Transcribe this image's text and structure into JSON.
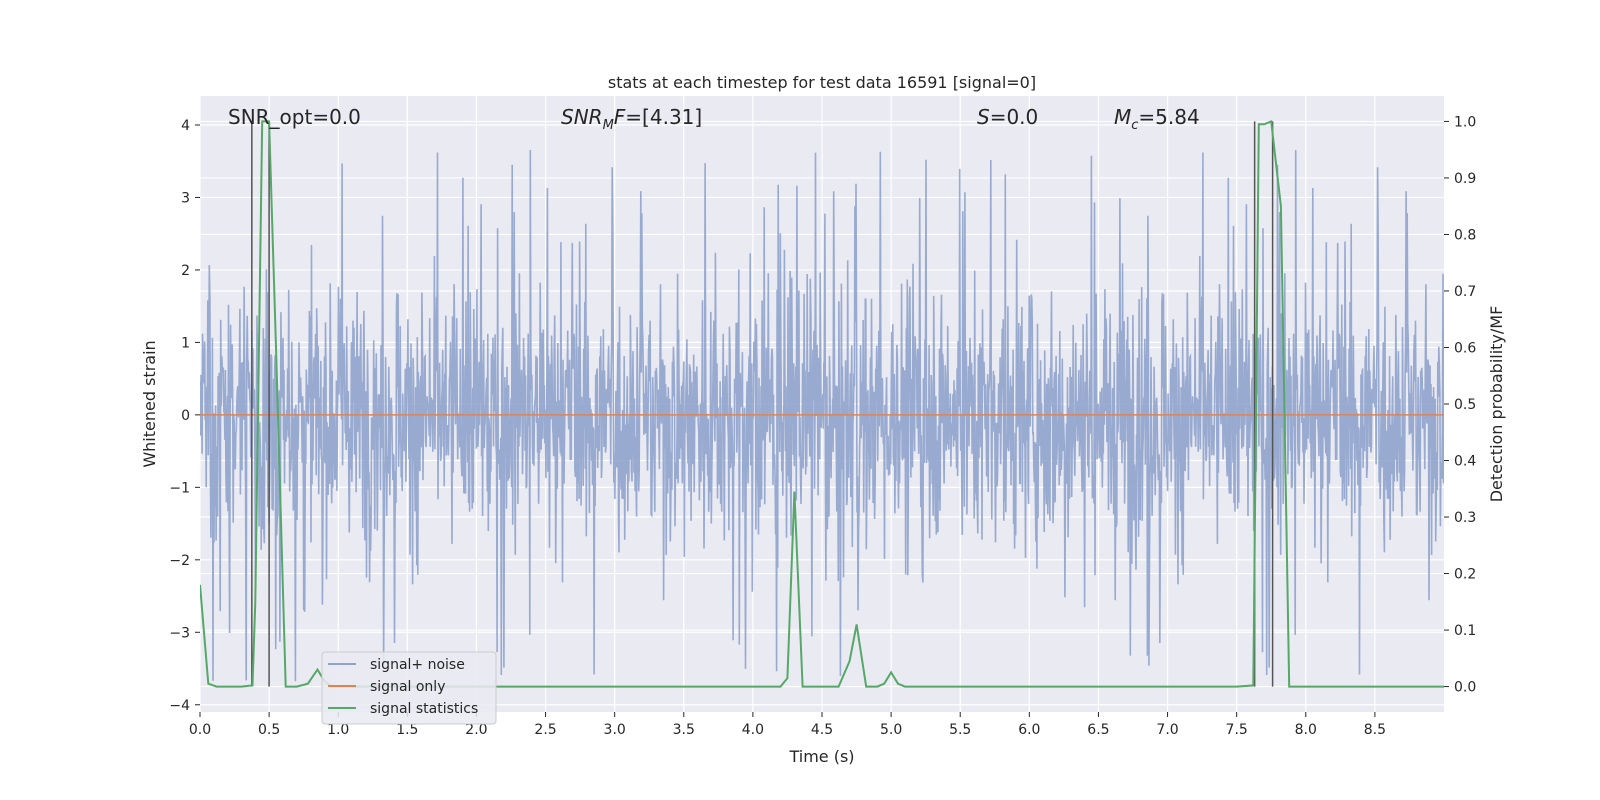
{
  "chart_data": {
    "type": "line",
    "title": "stats at each timestep for test data 16591 [signal=0]",
    "xlabel": "Time (s)",
    "ylabel": "Whitened strain",
    "y2label": "Detection probability/MF",
    "xlim": [
      0.0,
      9.0
    ],
    "ylim": [
      -4.1,
      4.4
    ],
    "y2lim": [
      -0.045,
      1.045
    ],
    "xticks": [
      "0.0",
      "0.5",
      "1.0",
      "1.5",
      "2.0",
      "2.5",
      "3.0",
      "3.5",
      "4.0",
      "4.5",
      "5.0",
      "5.5",
      "6.0",
      "6.5",
      "7.0",
      "7.5",
      "8.0",
      "8.5"
    ],
    "yticks": [
      "−4",
      "−3",
      "−2",
      "−1",
      "0",
      "1",
      "2",
      "3",
      "4"
    ],
    "y2ticks": [
      "0.0",
      "0.1",
      "0.2",
      "0.3",
      "0.4",
      "0.5",
      "0.6",
      "0.7",
      "0.8",
      "0.9",
      "1.0"
    ],
    "grid": true,
    "legend_position": "lower-left",
    "colors": {
      "noise": "#8fa3cc",
      "signal_only": "#dd8452",
      "stats": "#55a868",
      "vline": "#555555",
      "plot_bg": "#eaeaf2",
      "grid": "#ffffff"
    },
    "annotations": [
      {
        "label": "SNR_opt",
        "value": "=0.0"
      },
      {
        "label": "SNR",
        "sub": "M",
        "tail": "F",
        "value": "=[4.31]"
      },
      {
        "label": "S",
        "value": "=0.0"
      },
      {
        "label": "M",
        "sub": "c",
        "value": "=5.84"
      }
    ],
    "series": [
      {
        "name": "signal+ noise",
        "style": "noise",
        "x_range": [
          0.0,
          9.0
        ],
        "amplitude": 1.75,
        "max_peak": 4.0,
        "min_trough": -3.72
      },
      {
        "name": "signal only",
        "style": "flat",
        "values_constant": 0.0
      },
      {
        "name": "signal statistics",
        "axis": "right",
        "x": [
          0.0,
          0.06,
          0.12,
          0.2,
          0.3,
          0.38,
          0.4,
          0.45,
          0.5,
          0.55,
          0.62,
          0.7,
          0.78,
          0.85,
          0.9,
          0.95,
          1.0,
          1.5,
          2.0,
          2.5,
          3.0,
          3.5,
          4.0,
          4.2,
          4.25,
          4.3,
          4.36,
          4.5,
          4.62,
          4.7,
          4.75,
          4.82,
          4.9,
          4.95,
          5.0,
          5.05,
          5.1,
          5.5,
          6.0,
          6.5,
          7.0,
          7.5,
          7.62,
          7.66,
          7.7,
          7.75,
          7.82,
          7.88,
          8.0,
          8.5,
          8.7,
          9.0
        ],
        "y": [
          0.18,
          0.005,
          0.0,
          0.0,
          0.0,
          0.002,
          0.15,
          1.0,
          1.0,
          0.6,
          0.0,
          0.0,
          0.005,
          0.03,
          0.01,
          0.0,
          0.0,
          0.0,
          0.0,
          0.0,
          0.0,
          0.0,
          0.0,
          0.0,
          0.015,
          0.345,
          0.0,
          0.0,
          0.0,
          0.045,
          0.11,
          0.0,
          0.0,
          0.005,
          0.025,
          0.005,
          0.0,
          0.0,
          0.0,
          0.0,
          0.0,
          0.0,
          0.002,
          0.995,
          0.995,
          1.0,
          0.85,
          0.0,
          0.0,
          0.0,
          0.0,
          0.0
        ]
      }
    ],
    "vlines": [
      0.375,
      0.5,
      7.63,
      7.76
    ]
  }
}
